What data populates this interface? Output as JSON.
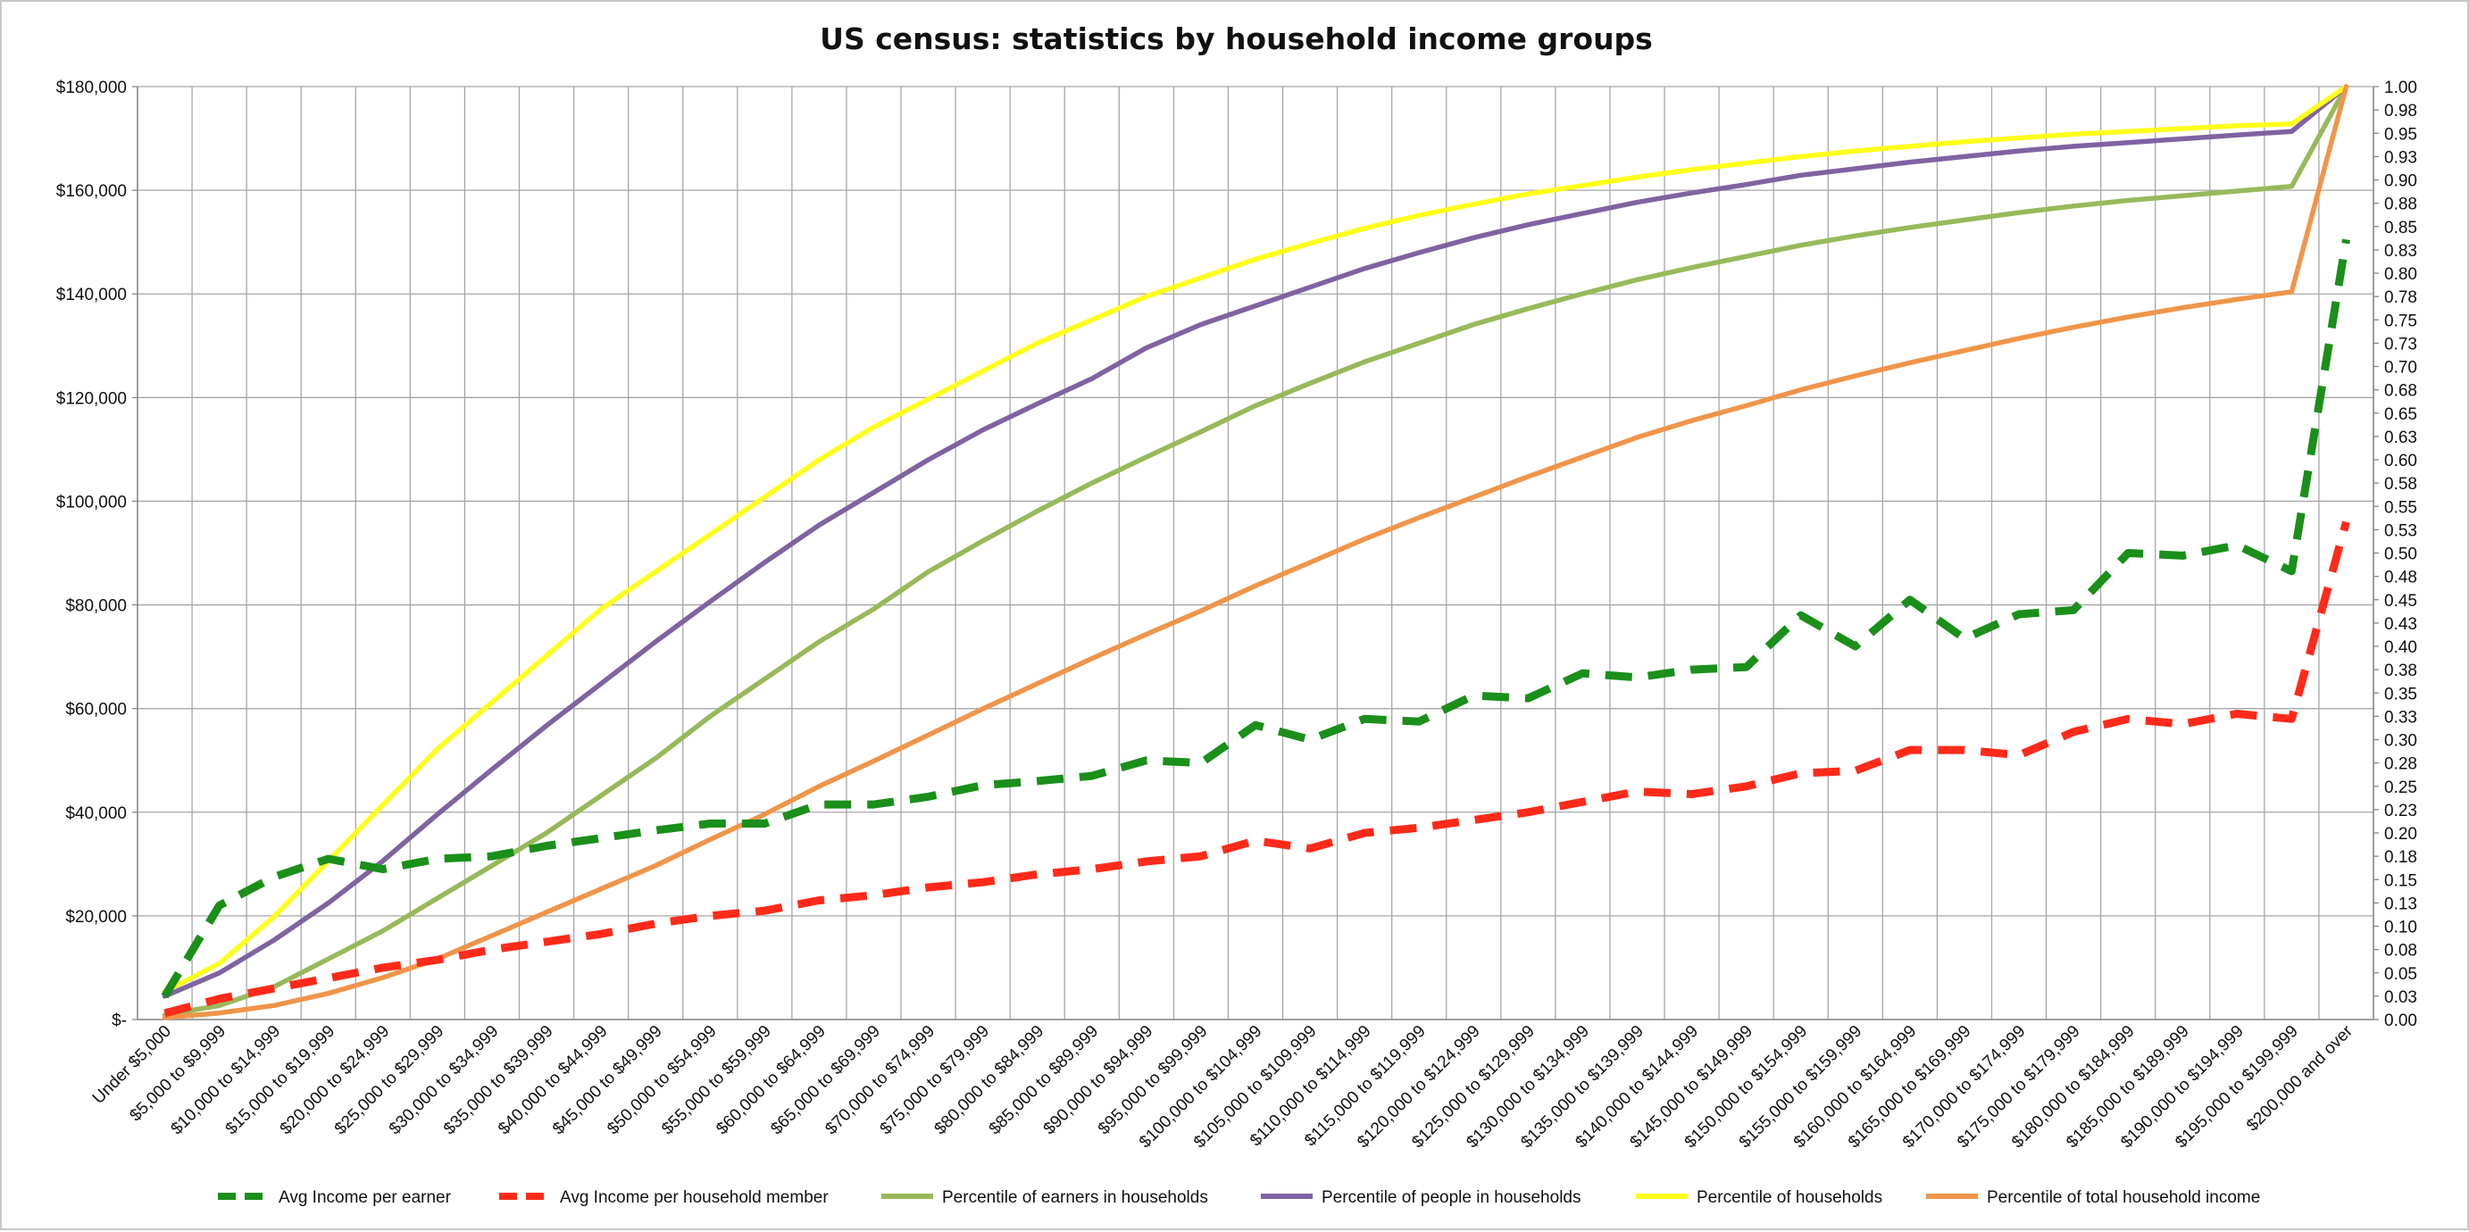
{
  "chart_data": {
    "type": "line",
    "title": "US census: statistics by household income groups",
    "xlabel": "",
    "ylabel": "",
    "y_left": {
      "min": 0,
      "max": 180000,
      "ticks": [
        0,
        20000,
        40000,
        60000,
        80000,
        100000,
        120000,
        140000,
        160000,
        180000
      ],
      "tick_labels": [
        "$-",
        "$20,000",
        "$40,000",
        "$60,000",
        "$80,000",
        "$100,000",
        "$120,000",
        "$140,000",
        "$160,000",
        "$180,000"
      ]
    },
    "y_right": {
      "min": 0,
      "max": 1,
      "tick_labels": [
        "0.00",
        "0.03",
        "0.05",
        "0.08",
        "0.10",
        "0.13",
        "0.15",
        "0.18",
        "0.20",
        "0.23",
        "0.25",
        "0.28",
        "0.30",
        "0.33",
        "0.35",
        "0.38",
        "0.40",
        "0.43",
        "0.45",
        "0.48",
        "0.50",
        "0.53",
        "0.55",
        "0.58",
        "0.60",
        "0.63",
        "0.65",
        "0.68",
        "0.70",
        "0.73",
        "0.75",
        "0.78",
        "0.80",
        "0.83",
        "0.85",
        "0.88",
        "0.90",
        "0.93",
        "0.95",
        "0.98",
        "1.00"
      ]
    },
    "grid": true,
    "legend_position": "bottom",
    "categories": [
      "Under $5,000",
      "$5,000 to $9,999",
      "$10,000 to $14,999",
      "$15,000 to $19,999",
      "$20,000 to $24,999",
      "$25,000 to $29,999",
      "$30,000 to $34,999",
      "$35,000 to $39,999",
      "$40,000 to $44,999",
      "$45,000 to $49,999",
      "$50,000 to $54,999",
      "$55,000 to $59,999",
      "$60,000 to $64,999",
      "$65,000 to $69,999",
      "$70,000 to $74,999",
      "$75,000 to $79,999",
      "$80,000 to $84,999",
      "$85,000 to $89,999",
      "$90,000 to $94,999",
      "$95,000 to $99,999",
      "$100,000 to $104,999",
      "$105,000 to $109,999",
      "$110,000 to $114,999",
      "$115,000 to $119,999",
      "$120,000 to $124,999",
      "$125,000 to $129,999",
      "$130,000 to $134,999",
      "$135,000 to $139,999",
      "$140,000 to $144,999",
      "$145,000 to $149,999",
      "$150,000 to $154,999",
      "$155,000 to $159,999",
      "$160,000 to $164,999",
      "$165,000 to $169,999",
      "$170,000 to $174,999",
      "$175,000 to $179,999",
      "$180,000 to $184,999",
      "$185,000 to $189,999",
      "$190,000 to $194,999",
      "$195,000 to $199,999",
      "$200,000 and over"
    ],
    "series": [
      {
        "name": "Avg Income per earner",
        "axis": "left",
        "style": "dashed",
        "color": "#1a8f1a",
        "values": [
          4500,
          22000,
          27500,
          31000,
          29000,
          31000,
          31500,
          33500,
          35000,
          36500,
          37800,
          37800,
          41500,
          41500,
          43000,
          45200,
          46000,
          47000,
          50000,
          49500,
          56800,
          54000,
          58000,
          57500,
          62500,
          62000,
          66800,
          66000,
          67500,
          68000,
          78000,
          72000,
          81000,
          73500,
          78200,
          79000,
          90000,
          89500,
          91500,
          86500,
          150500
        ]
      },
      {
        "name": "Avg Income per household member",
        "axis": "left",
        "style": "dashed",
        "color": "#ff2a1a",
        "values": [
          1200,
          4000,
          6000,
          8000,
          10000,
          11500,
          13500,
          15000,
          16500,
          18500,
          20000,
          21000,
          23000,
          24000,
          25500,
          26500,
          28000,
          29000,
          30500,
          31500,
          34500,
          33000,
          36000,
          37000,
          38500,
          40000,
          42000,
          44000,
          43500,
          45000,
          47500,
          48000,
          52000,
          52000,
          51000,
          55500,
          58000,
          57000,
          59000,
          58000,
          96000
        ]
      },
      {
        "name": "Percentile of earners in households",
        "axis": "right",
        "style": "solid",
        "color": "#98b95a",
        "values": [
          0.005,
          0.015,
          0.035,
          0.065,
          0.095,
          0.13,
          0.165,
          0.2,
          0.24,
          0.28,
          0.325,
          0.365,
          0.405,
          0.44,
          0.48,
          0.513,
          0.545,
          0.575,
          0.603,
          0.63,
          0.658,
          0.682,
          0.705,
          0.725,
          0.745,
          0.762,
          0.778,
          0.793,
          0.806,
          0.818,
          0.83,
          0.84,
          0.849,
          0.857,
          0.865,
          0.872,
          0.878,
          0.883,
          0.888,
          0.893,
          1.0
        ]
      },
      {
        "name": "Percentile of people in households",
        "axis": "right",
        "style": "solid",
        "color": "#7f63a1",
        "values": [
          0.025,
          0.05,
          0.085,
          0.125,
          0.17,
          0.22,
          0.268,
          0.315,
          0.36,
          0.405,
          0.448,
          0.49,
          0.53,
          0.565,
          0.6,
          0.632,
          0.66,
          0.687,
          0.72,
          0.745,
          0.765,
          0.785,
          0.805,
          0.822,
          0.838,
          0.852,
          0.864,
          0.876,
          0.886,
          0.895,
          0.905,
          0.912,
          0.919,
          0.925,
          0.931,
          0.936,
          0.94,
          0.944,
          0.948,
          0.952,
          1.0
        ]
      },
      {
        "name": "Percentile of households",
        "axis": "right",
        "style": "solid",
        "color": "#ffff1a",
        "values": [
          0.03,
          0.06,
          0.11,
          0.17,
          0.23,
          0.29,
          0.34,
          0.39,
          0.44,
          0.48,
          0.52,
          0.56,
          0.6,
          0.635,
          0.665,
          0.695,
          0.725,
          0.75,
          0.775,
          0.795,
          0.815,
          0.832,
          0.848,
          0.862,
          0.874,
          0.885,
          0.894,
          0.903,
          0.911,
          0.918,
          0.925,
          0.931,
          0.936,
          0.941,
          0.945,
          0.949,
          0.952,
          0.955,
          0.958,
          0.96,
          1.0
        ]
      },
      {
        "name": "Percentile of total household income",
        "axis": "right",
        "style": "solid",
        "color": "#f0954a",
        "values": [
          0.002,
          0.007,
          0.015,
          0.028,
          0.045,
          0.065,
          0.09,
          0.115,
          0.14,
          0.165,
          0.193,
          0.22,
          0.25,
          0.277,
          0.305,
          0.333,
          0.36,
          0.387,
          0.413,
          0.438,
          0.465,
          0.49,
          0.515,
          0.538,
          0.56,
          0.582,
          0.603,
          0.624,
          0.642,
          0.658,
          0.675,
          0.69,
          0.704,
          0.717,
          0.73,
          0.742,
          0.753,
          0.763,
          0.772,
          0.78,
          1.0
        ]
      }
    ]
  }
}
